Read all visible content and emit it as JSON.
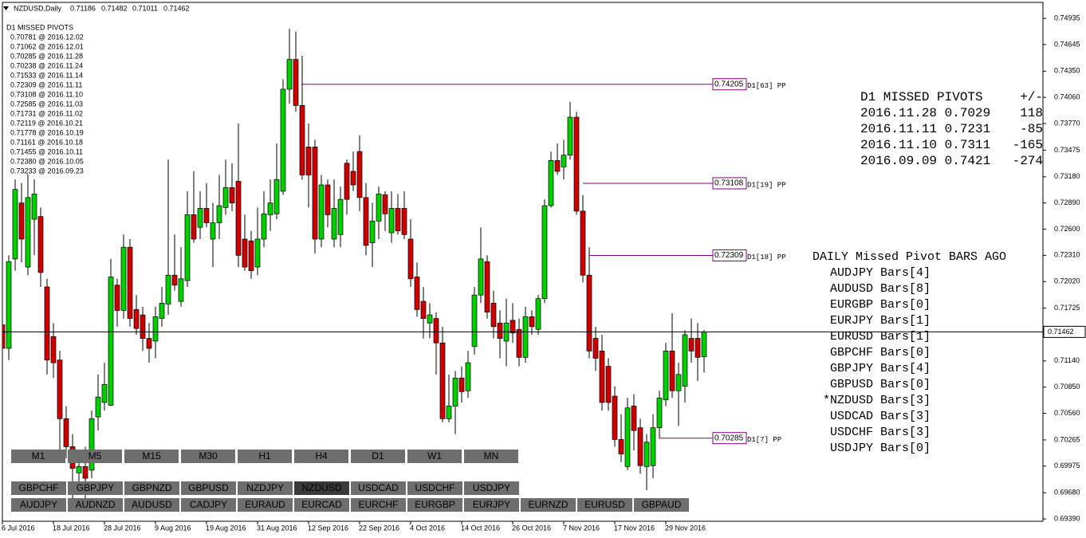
{
  "header": {
    "symbol": "NZDUSD,Daily",
    "ohlc": [
      0.71186,
      0.71482,
      0.71011,
      0.71462
    ]
  },
  "chart_data": {
    "type": "candlestick",
    "up_color": "#00d000",
    "down_color": "#d00000",
    "ylim": [
      0.69364,
      0.75112
    ],
    "yticks": [
      0.74935,
      0.74645,
      {
        "value": 0.7435,
        "label": "0.74350"
      },
      {
        "value": 0.7406,
        "label": "0.74060"
      },
      {
        "value": 0.7377,
        "label": "0.73770"
      },
      0.73475,
      {
        "value": 0.7318,
        "label": "0.73180"
      },
      {
        "value": 0.7289,
        "label": "0.72890"
      },
      {
        "value": 0.726,
        "label": "0.72600"
      },
      {
        "value": 0.7231,
        "label": "0.72310"
      },
      {
        "value": 0.7202,
        "label": "0.72020"
      },
      0.71725,
      {
        "value": 0.7114,
        "label": "0.71140"
      },
      {
        "value": 0.7085,
        "label": "0.70850"
      },
      {
        "value": 0.7056,
        "label": "0.70560"
      },
      0.70265,
      0.69975,
      {
        "value": 0.6968,
        "label": "0.69680"
      },
      {
        "value": 0.6939,
        "label": "0.69390"
      }
    ],
    "current_price": 0.71462,
    "categories": [
      "6 Jul 2016",
      null,
      null,
      null,
      null,
      null,
      null,
      null,
      "18 Jul 2016",
      null,
      null,
      null,
      null,
      null,
      null,
      null,
      "28 Jul 2016",
      null,
      null,
      null,
      null,
      null,
      null,
      null,
      "9 Aug 2016",
      null,
      null,
      null,
      null,
      null,
      null,
      null,
      "19 Aug 2016",
      null,
      null,
      null,
      null,
      null,
      null,
      null,
      "31 Aug 2016",
      null,
      null,
      null,
      null,
      null,
      null,
      null,
      "12 Sep 2016",
      null,
      null,
      null,
      null,
      null,
      null,
      null,
      "22 Sep 2016",
      null,
      null,
      null,
      null,
      null,
      null,
      null,
      "4 Oct 2016",
      null,
      null,
      null,
      null,
      null,
      null,
      null,
      "14 Oct 2016",
      null,
      null,
      null,
      null,
      null,
      null,
      null,
      "26 Oct 2016",
      null,
      null,
      null,
      null,
      null,
      null,
      null,
      "7 Nov 2016",
      null,
      null,
      null,
      null,
      null,
      null,
      null,
      "17 Nov 2016",
      null,
      null,
      null,
      null,
      null,
      null,
      null,
      "29 Nov 2016",
      null,
      null,
      null,
      null,
      null,
      null
    ],
    "open": [
      0.7154,
      0.7128,
      0.7227,
      0.7289,
      0.7218,
      0.7271,
      0.7274,
      0.7196,
      0.7141,
      0.7115,
      0.705,
      0.7019,
      0.699,
      0.6997,
      0.6993,
      0.7052,
      0.7068,
      0.7065,
      0.7198,
      0.717,
      0.724,
      0.7171,
      0.7165,
      0.7139,
      0.7136,
      0.7161,
      0.7177,
      0.7209,
      0.718,
      0.7203,
      0.7276,
      0.7262,
      0.7283,
      0.7249,
      0.7267,
      0.7284,
      0.7306,
      0.7313,
      0.7249,
      0.7247,
      0.7218,
      0.7249,
      0.7276,
      0.7277,
      0.7302,
      0.7415,
      0.7448,
      0.7397,
      0.7351,
      0.7351,
      0.7249,
      0.7309,
      0.7249,
      0.7254,
      0.7333,
      0.7324,
      0.7346,
      0.7295,
      0.7245,
      0.7269,
      0.7298,
      0.7256,
      0.7283,
      0.7283,
      0.7249,
      0.7207,
      0.718,
      0.7156,
      0.7161,
      0.7134,
      0.705,
      0.7064,
      0.7095,
      0.7081,
      0.713,
      0.7187,
      0.7224,
      0.7178,
      0.7156,
      0.7136,
      0.7159,
      0.7149,
      0.7118,
      0.7163,
      0.7149,
      0.7183,
      0.7286,
      0.7336,
      0.7329,
      0.7342,
      0.7384,
      0.728,
      0.7209,
      0.7139,
      0.7125,
      0.7108,
      0.7075,
      0.7027,
      0.6997,
      0.7064,
      0.704,
      0.6997,
      0.6998,
      0.704,
      0.7071,
      0.7125,
      0.7081,
      0.7086,
      0.7139,
      0.7139,
      0.71186
    ],
    "high": [
      0.7178,
      0.7231,
      0.7315,
      0.7311,
      0.7321,
      0.7315,
      0.7284,
      0.7205,
      0.7156,
      0.7125,
      0.7064,
      0.7033,
      0.7015,
      0.7019,
      0.7059,
      0.7099,
      0.7112,
      0.7227,
      0.7205,
      0.7254,
      0.7249,
      0.7187,
      0.7174,
      0.7156,
      0.7174,
      0.7196,
      0.7337,
      0.7254,
      0.724,
      0.7302,
      0.7324,
      0.7302,
      0.7311,
      0.7289,
      0.732,
      0.7337,
      0.7333,
      0.7377,
      0.7276,
      0.7258,
      0.7284,
      0.7302,
      0.7315,
      0.7355,
      0.7426,
      0.7482,
      0.7479,
      0.7452,
      0.7377,
      0.7359,
      0.732,
      0.7315,
      0.7315,
      0.7307,
      0.7337,
      0.7346,
      0.7364,
      0.7311,
      0.7289,
      0.7307,
      0.7302,
      0.7302,
      0.7299,
      0.7302,
      0.7271,
      0.7223,
      0.7196,
      0.7178,
      0.7168,
      0.7152,
      0.7099,
      0.7103,
      0.7108,
      0.7125,
      0.7196,
      0.7262,
      0.7231,
      0.7192,
      0.717,
      0.7183,
      0.7178,
      0.7161,
      0.7174,
      0.717,
      0.7187,
      0.7293,
      0.7346,
      0.7355,
      0.7359,
      0.7401,
      0.739,
      0.7298,
      0.724,
      0.7152,
      0.7143,
      0.7117,
      0.7086,
      0.7055,
      0.7073,
      0.7077,
      0.705,
      0.7033,
      0.7055,
      0.7081,
      0.7134,
      0.7167,
      0.7112,
      0.7148,
      0.7161,
      0.7156,
      0.71482
    ],
    "low": [
      0.7117,
      0.7115,
      0.7214,
      0.7223,
      0.7209,
      0.7231,
      0.7196,
      0.7099,
      0.7095,
      0.7011,
      0.7006,
      0.6949,
      0.6971,
      0.6962,
      0.6984,
      0.7037,
      0.7059,
      0.7064,
      0.7152,
      0.7161,
      0.7152,
      0.7143,
      0.7125,
      0.7112,
      0.7117,
      0.7152,
      0.7165,
      0.7192,
      0.7174,
      0.7196,
      0.7245,
      0.7249,
      0.7262,
      0.7218,
      0.7249,
      0.7276,
      0.728,
      0.7218,
      0.7214,
      0.7205,
      0.7209,
      0.724,
      0.7258,
      0.7271,
      0.7298,
      0.7399,
      0.739,
      0.7315,
      0.7284,
      0.7233,
      0.724,
      0.7262,
      0.724,
      0.724,
      0.7276,
      0.7302,
      0.728,
      0.7231,
      0.7218,
      0.7249,
      0.7258,
      0.7245,
      0.7254,
      0.7249,
      0.7196,
      0.7163,
      0.7139,
      0.7139,
      0.7099,
      0.7046,
      0.7046,
      0.7033,
      0.7068,
      0.7073,
      0.7121,
      0.7178,
      0.7161,
      0.7139,
      0.7117,
      0.7108,
      0.7134,
      0.7108,
      0.7112,
      0.7143,
      0.7143,
      0.7178,
      0.7284,
      0.732,
      0.7315,
      0.7337,
      0.7276,
      0.7201,
      0.7117,
      0.7103,
      0.7059,
      0.7059,
      0.7019,
      0.7002,
      0.6993,
      0.7015,
      0.6989,
      0.6971,
      0.6984,
      0.7028,
      0.7064,
      0.7073,
      0.7042,
      0.7068,
      0.7112,
      0.7092,
      0.71011
    ],
    "close": [
      0.7128,
      0.7224,
      0.7304,
      0.7249,
      0.7295,
      0.7299,
      0.7212,
      0.7115,
      0.7112,
      0.705,
      0.7019,
      0.6995,
      0.6997,
      0.6984,
      0.705,
      0.7074,
      0.7088,
      0.7207,
      0.717,
      0.724,
      0.7161,
      0.715,
      0.7139,
      0.7128,
      0.7163,
      0.7178,
      0.7209,
      0.7198,
      0.7205,
      0.7276,
      0.7249,
      0.7283,
      0.7267,
      0.7267,
      0.7286,
      0.7306,
      0.7289,
      0.7231,
      0.7218,
      0.7214,
      0.7249,
      0.7277,
      0.7289,
      0.7315,
      0.7415,
      0.7448,
      0.7397,
      0.732,
      0.732,
      0.7249,
      0.7309,
      0.7276,
      0.7283,
      0.7293,
      0.7293,
      0.7309,
      0.7295,
      0.7242,
      0.7269,
      0.7299,
      0.7277,
      0.7283,
      0.7258,
      0.7254,
      0.7205,
      0.7171,
      0.7161,
      0.7165,
      0.7134,
      0.705,
      0.7064,
      0.7095,
      0.708,
      0.7112,
      0.7187,
      0.7227,
      0.7168,
      0.7152,
      0.7139,
      0.7156,
      0.7145,
      0.7118,
      0.7163,
      0.7152,
      0.7183,
      0.7286,
      0.7336,
      0.7324,
      0.7342,
      0.7384,
      0.728,
      0.7209,
      0.7125,
      0.7117,
      0.7068,
      0.7068,
      0.7027,
      0.7011,
      0.7062,
      0.7037,
      0.6998,
      0.7024,
      0.704,
      0.7073,
      0.7125,
      0.7081,
      0.7099,
      0.7143,
      0.7125,
      0.7118,
      0.71462
    ],
    "pivot_color": "#800080",
    "pivot_lines": [
      {
        "value": 0.74205,
        "label": "D1[63] PP"
      },
      {
        "value": 0.73108,
        "label": "D1[19] PP"
      },
      {
        "value": 0.72309,
        "label": "D1[18] PP"
      },
      {
        "value": 0.70285,
        "label": "D1[7] PP"
      }
    ],
    "list_title": "D1 MISSED PIVOTS",
    "list": [
      "0.70781 @ 2016.12.02",
      "0.71062 @ 2016.12.01",
      "0.70285 @ 2016.11.28",
      "0.70238 @ 2016.11.24",
      "0.71533 @ 2016.11.14",
      "0.72309 @ 2016.11.11",
      "0.73108 @ 2016.11.10",
      "0.72585 @ 2016.11.03",
      "0.71731 @ 2016.11.02",
      "0.72119 @ 2016.10.21",
      "0.71778 @ 2016.10.19",
      "0.71161 @ 2016.10.18",
      "0.71455 @ 2016.10.11",
      "0.72380 @ 2016.10.05",
      "0.73233 @ 2016.09.23"
    ]
  },
  "missed_panel": {
    "title": "D1 MISSED PIVOTS",
    "delta_header": "+/-",
    "rows": [
      {
        "text": "2016.11.28 0.7029",
        "delta": 118,
        "color": "#3c9c3c"
      },
      {
        "text": "2016.11.11 0.7231",
        "delta": -85,
        "color": "#e03030"
      },
      {
        "text": "2016.11.10 0.7311",
        "delta": -165,
        "color": "#e03030"
      },
      {
        "text": "2016.09.09 0.7421",
        "delta": -274,
        "color": "#e03030"
      }
    ]
  },
  "bars_panel": {
    "title": "DAILY Missed Pivot BARS AGO",
    "items": [
      {
        "text": "AUDJPY Bars[4]",
        "color": "#8c8c8c"
      },
      {
        "text": "AUDUSD Bars[8]",
        "color": "#8c8c8c"
      },
      {
        "text": "EURGBP Bars[0]",
        "color": "#8c8c8c"
      },
      {
        "text": "EURJPY Bars[1]",
        "color": "#e040e0"
      },
      {
        "text": "EURUSD Bars[1]",
        "color": "#e040e0"
      },
      {
        "text": "GBPCHF Bars[0]",
        "color": "#8c8c8c"
      },
      {
        "text": "GBPJPY Bars[4]",
        "color": "#8c8c8c"
      },
      {
        "text": "GBPUSD Bars[0]",
        "color": "#8c8c8c"
      },
      {
        "text": "*NZDUSD Bars[3]",
        "color": "#8c8c8c"
      },
      {
        "text": "USDCAD Bars[3]",
        "color": "#8c8c8c"
      },
      {
        "text": "USDCHF Bars[3]",
        "color": "#8c8c8c"
      },
      {
        "text": "USDJPY Bars[0]",
        "color": "#8c8c8c"
      }
    ]
  },
  "timeframes": [
    {
      "label": "M1",
      "color": "#e6e6e6"
    },
    {
      "label": "M5",
      "color": "#e6e6e6"
    },
    {
      "label": "M15",
      "color": "#e6e6e6"
    },
    {
      "label": "M30",
      "color": "#e6e6e6"
    },
    {
      "label": "H1",
      "color": "#e6e6e6"
    },
    {
      "label": "H4",
      "color": "#e6e6e6"
    },
    {
      "label": "D1",
      "color": "#000000"
    },
    {
      "label": "W1",
      "color": "#e6e6e6"
    },
    {
      "label": "MN",
      "color": "#e6e6e6"
    }
  ],
  "symbols": [
    [
      {
        "label": "GBPCHF",
        "background": "#6e6e6e"
      },
      {
        "label": "GBPJPY",
        "background": "#6e6e6e"
      },
      {
        "label": "GBPNZD",
        "background": "#6e6e6e"
      },
      {
        "label": "GBPUSD",
        "background": "#6e6e6e"
      },
      {
        "label": "NZDJPY",
        "background": "#6e6e6e"
      },
      {
        "label": "NZDUSD",
        "background": "#3a3a3a"
      },
      {
        "label": "USDCAD",
        "background": "#6e6e6e"
      },
      {
        "label": "USDCHF",
        "background": "#6e6e6e"
      },
      {
        "label": "USDJPY",
        "background": "#6e6e6e"
      }
    ],
    [
      {
        "label": "AUDJPY",
        "background": "#6e6e6e"
      },
      {
        "label": "AUDNZD",
        "background": "#6e6e6e"
      },
      {
        "label": "AUDUSD",
        "background": "#6e6e6e"
      },
      {
        "label": "CADJPY",
        "background": "#6e6e6e"
      },
      {
        "label": "EURAUD",
        "background": "#6e6e6e"
      },
      {
        "label": "EURCAD",
        "background": "#6e6e6e"
      },
      {
        "label": "EURCHF",
        "background": "#6e6e6e"
      },
      {
        "label": "EURGBP",
        "background": "#6e6e6e"
      },
      {
        "label": "EURJPY",
        "background": "#6e6e6e"
      },
      {
        "label": "EURNZD",
        "background": "#6e6e6e"
      },
      {
        "label": "EURUSD",
        "background": "#6e6e6e"
      },
      {
        "label": "GBPAUD",
        "background": "#6e6e6e"
      }
    ]
  ]
}
